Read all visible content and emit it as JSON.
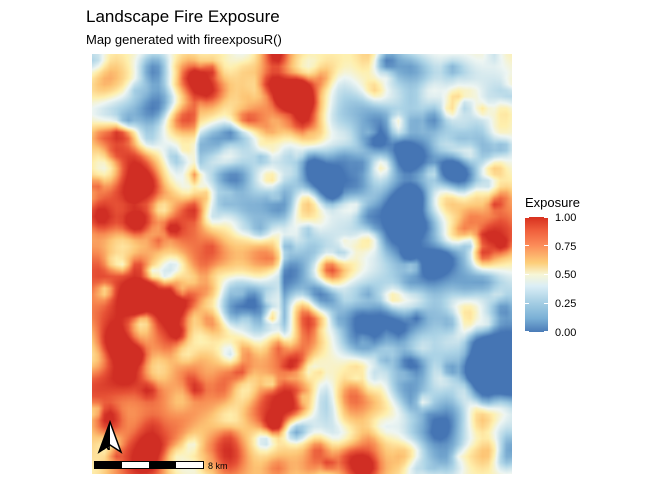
{
  "header": {
    "title": "Landscape Fire Exposure",
    "subtitle": "Map generated with fireexposuR()"
  },
  "legend": {
    "title": "Exposure",
    "labels": [
      "1.00",
      "0.75",
      "0.50",
      "0.25",
      "0.00"
    ],
    "colors": [
      "#d7301f",
      "#fc8d59",
      "#fdcf7a",
      "#f7f6d6",
      "#a3cde3",
      "#4a7bb7"
    ]
  },
  "map": {
    "north_label": "N",
    "scale_label": "8 km"
  }
}
